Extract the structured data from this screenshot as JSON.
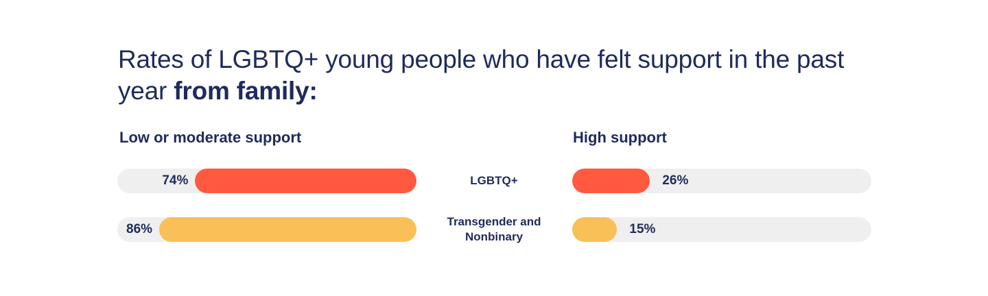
{
  "title": {
    "text_regular": "Rates of LGBTQ+ young people who have felt support in the past year ",
    "text_bold": "from family:"
  },
  "colors": {
    "text": "#1f2a5c",
    "track": "#efefef",
    "lgbtq": "#ff5a3f",
    "trans_nonbinary": "#f8c056"
  },
  "chart_data": {
    "type": "bar",
    "title": "Rates of LGBTQ+ young people who have felt support in the past year from family:",
    "categories": [
      "LGBTQ+",
      "Transgender and Nonbinary"
    ],
    "series": [
      {
        "name": "Low or moderate support",
        "values": [
          74,
          86
        ],
        "labels": [
          "74%",
          "86%"
        ]
      },
      {
        "name": "High support",
        "values": [
          26,
          15
        ],
        "labels": [
          "26%",
          "15%"
        ]
      }
    ],
    "unit": "%",
    "xlim": [
      0,
      100
    ]
  },
  "groups": [
    {
      "label_lines": [
        "LGBTQ+"
      ],
      "color": "#ff5a3f"
    },
    {
      "label_lines": [
        "Transgender and",
        "Nonbinary"
      ],
      "color": "#f8c056"
    }
  ]
}
